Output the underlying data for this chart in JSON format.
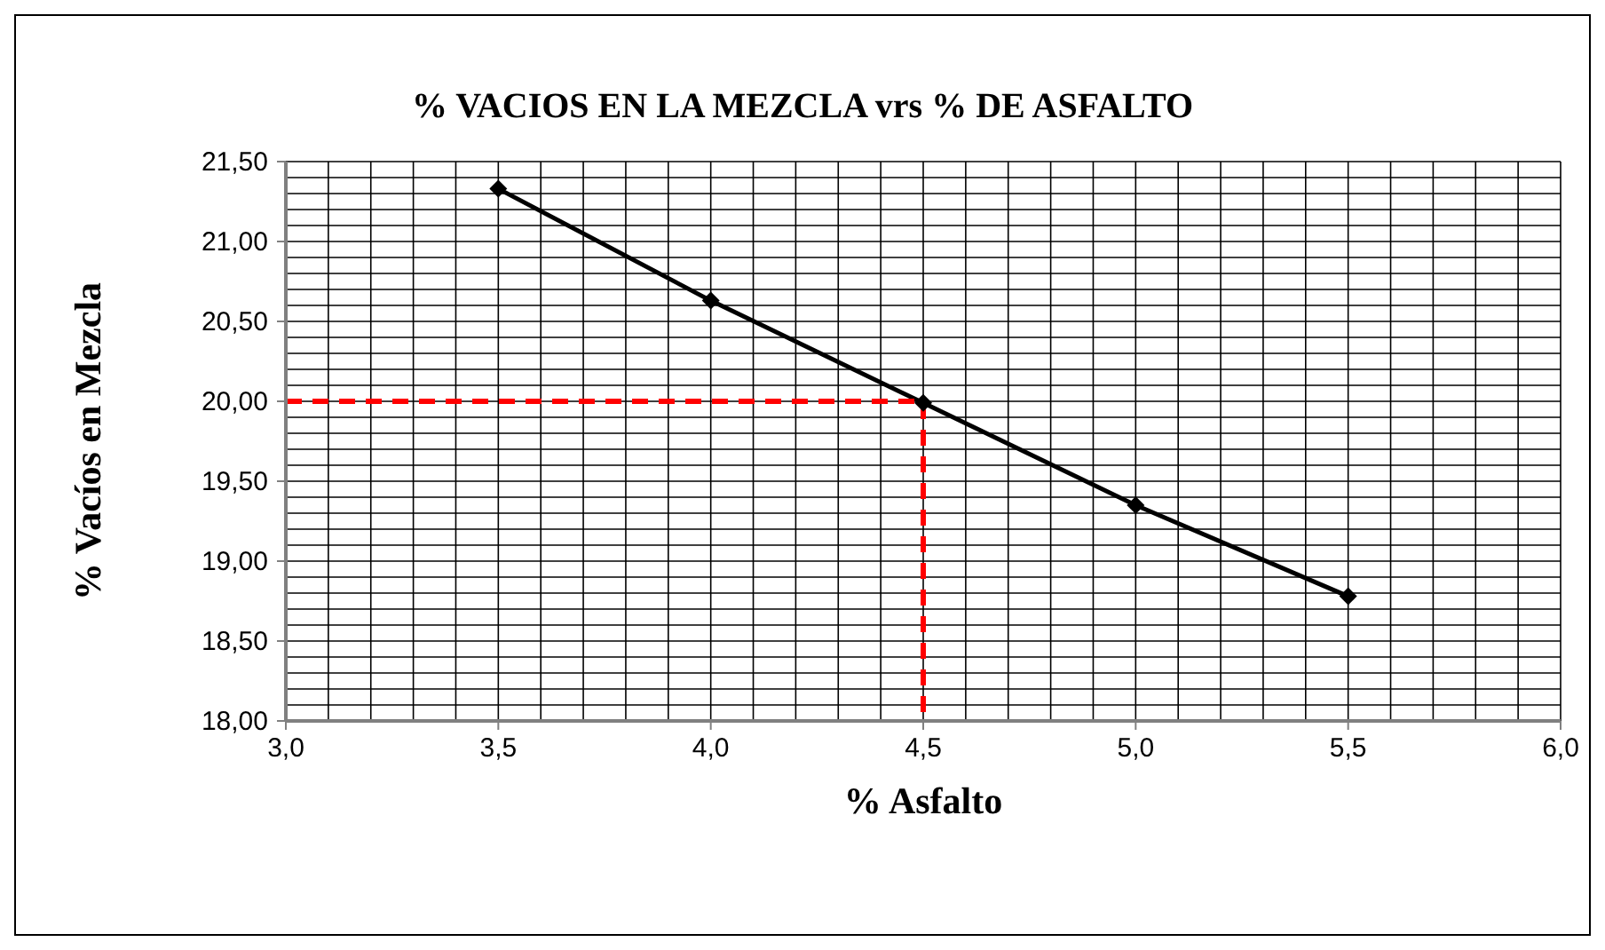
{
  "chart_data": {
    "type": "line",
    "title": "% VACIOS EN LA MEZCLA vrs % DE ASFALTO",
    "xlabel": "% Asfalto",
    "ylabel": "% Vacíos en Mezcla",
    "series": [
      {
        "x": [
          3.5,
          4.0,
          4.5,
          5.0,
          5.5
        ],
        "values": [
          21.33,
          20.63,
          19.99,
          19.35,
          18.78
        ],
        "color": "#000000",
        "marker": "diamond",
        "line_style": "solid"
      },
      {
        "x": [
          3.0,
          4.5,
          4.5
        ],
        "values": [
          20.0,
          20.0,
          18.0
        ],
        "color": "#ff0000",
        "marker": "none",
        "line_style": "dashed"
      }
    ],
    "xlim": [
      3.0,
      6.0
    ],
    "xticks": [
      {
        "value": 3.0,
        "label": "3,0"
      },
      {
        "value": 3.1,
        "label": null
      },
      {
        "value": 3.2,
        "label": null
      },
      {
        "value": 3.3,
        "label": null
      },
      {
        "value": 3.4,
        "label": null
      },
      {
        "value": 3.5,
        "label": "3,5"
      },
      {
        "value": 3.6,
        "label": null
      },
      {
        "value": 3.7,
        "label": null
      },
      {
        "value": 3.8,
        "label": null
      },
      {
        "value": 3.9,
        "label": null
      },
      {
        "value": 4.0,
        "label": "4,0"
      },
      {
        "value": 4.1,
        "label": null
      },
      {
        "value": 4.2,
        "label": null
      },
      {
        "value": 4.3,
        "label": null
      },
      {
        "value": 4.4,
        "label": null
      },
      {
        "value": 4.5,
        "label": "4,5"
      },
      {
        "value": 4.6,
        "label": null
      },
      {
        "value": 4.7,
        "label": null
      },
      {
        "value": 4.8,
        "label": null
      },
      {
        "value": 4.9,
        "label": null
      },
      {
        "value": 5.0,
        "label": "5,0"
      },
      {
        "value": 5.1,
        "label": null
      },
      {
        "value": 5.2,
        "label": null
      },
      {
        "value": 5.3,
        "label": null
      },
      {
        "value": 5.4,
        "label": null
      },
      {
        "value": 5.5,
        "label": "5,5"
      },
      {
        "value": 5.6,
        "label": null
      },
      {
        "value": 5.7,
        "label": null
      },
      {
        "value": 5.8,
        "label": null
      },
      {
        "value": 5.9,
        "label": null
      },
      {
        "value": 6.0,
        "label": "6,0"
      }
    ],
    "ylim": [
      18.0,
      21.5
    ],
    "yticks": [
      {
        "value": 18.0,
        "label": "18,00"
      },
      {
        "value": 18.1,
        "label": null
      },
      {
        "value": 18.2,
        "label": null
      },
      {
        "value": 18.3,
        "label": null
      },
      {
        "value": 18.4,
        "label": null
      },
      {
        "value": 18.5,
        "label": "18,50"
      },
      {
        "value": 18.6,
        "label": null
      },
      {
        "value": 18.7,
        "label": null
      },
      {
        "value": 18.8,
        "label": null
      },
      {
        "value": 18.9,
        "label": null
      },
      {
        "value": 19.0,
        "label": "19,00"
      },
      {
        "value": 19.1,
        "label": null
      },
      {
        "value": 19.2,
        "label": null
      },
      {
        "value": 19.3,
        "label": null
      },
      {
        "value": 19.4,
        "label": null
      },
      {
        "value": 19.5,
        "label": "19,50"
      },
      {
        "value": 19.6,
        "label": null
      },
      {
        "value": 19.7,
        "label": null
      },
      {
        "value": 19.8,
        "label": null
      },
      {
        "value": 19.9,
        "label": null
      },
      {
        "value": 20.0,
        "label": "20,00"
      },
      {
        "value": 20.1,
        "label": null
      },
      {
        "value": 20.2,
        "label": null
      },
      {
        "value": 20.3,
        "label": null
      },
      {
        "value": 20.4,
        "label": null
      },
      {
        "value": 20.5,
        "label": "20,50"
      },
      {
        "value": 20.6,
        "label": null
      },
      {
        "value": 20.7,
        "label": null
      },
      {
        "value": 20.8,
        "label": null
      },
      {
        "value": 20.9,
        "label": null
      },
      {
        "value": 21.0,
        "label": "21,00"
      },
      {
        "value": 21.1,
        "label": null
      },
      {
        "value": 21.2,
        "label": null
      },
      {
        "value": 21.3,
        "label": null
      },
      {
        "value": 21.4,
        "label": null
      },
      {
        "value": 21.5,
        "label": "21,50"
      }
    ],
    "grid": true
  }
}
